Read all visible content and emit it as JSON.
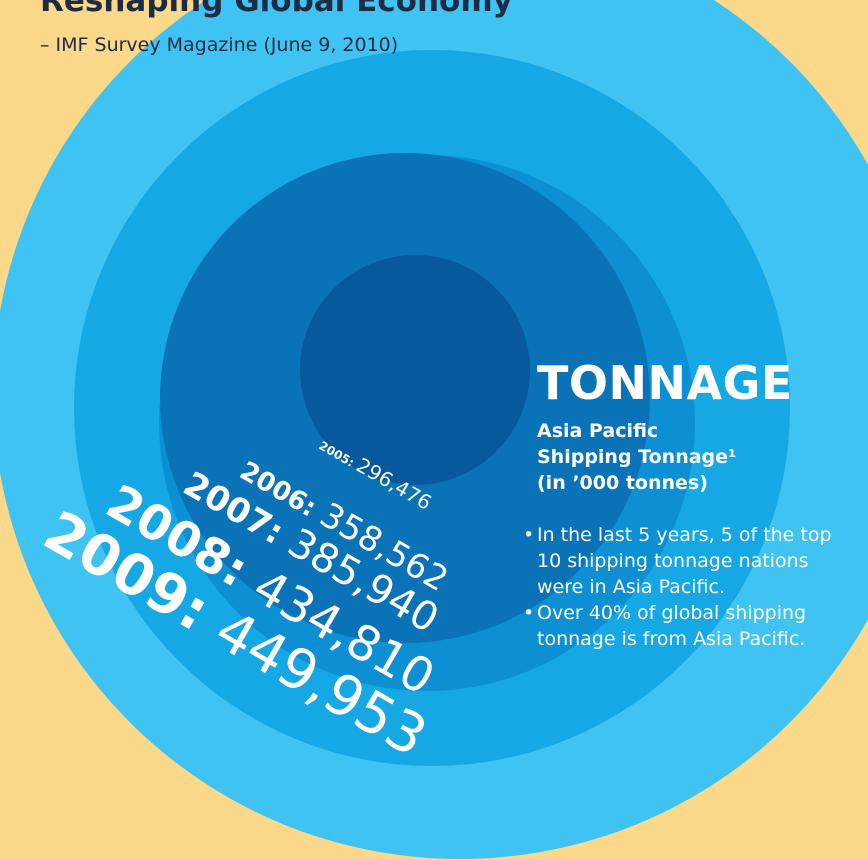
{
  "header": {
    "title": "Reshaping Global Economy",
    "title_note": "³”",
    "source": "– IMF Survey Magazine  (June 9, 2010)"
  },
  "panel": {
    "title": "TONNAGE",
    "subtitle_lines": [
      "Asia Pacific",
      "Shipping Tonnage¹",
      "(in ’000 tonnes)"
    ],
    "bullets": [
      "In the last 5 years, 5 of the top 10 shipping tonnage nations were in Asia Pacific.",
      "Over 40% of global shipping tonnage is from Asia Pacific."
    ]
  },
  "chart_data": {
    "type": "bubble",
    "title": "TONNAGE",
    "subtitle": "Asia Pacific Shipping Tonnage¹ (in ’000 tonnes)",
    "categories": [
      "2005",
      "2006",
      "2007",
      "2008",
      "2009"
    ],
    "values": [
      296476,
      358562,
      385940,
      434810,
      449953
    ],
    "labels": [
      "296,476",
      "358,562",
      "385,940",
      "434,810",
      "449,953"
    ],
    "colors": [
      "#07589d",
      "#0a73b8",
      "#0d8fd3",
      "#15a8e4",
      "#3ec3f2"
    ]
  }
}
